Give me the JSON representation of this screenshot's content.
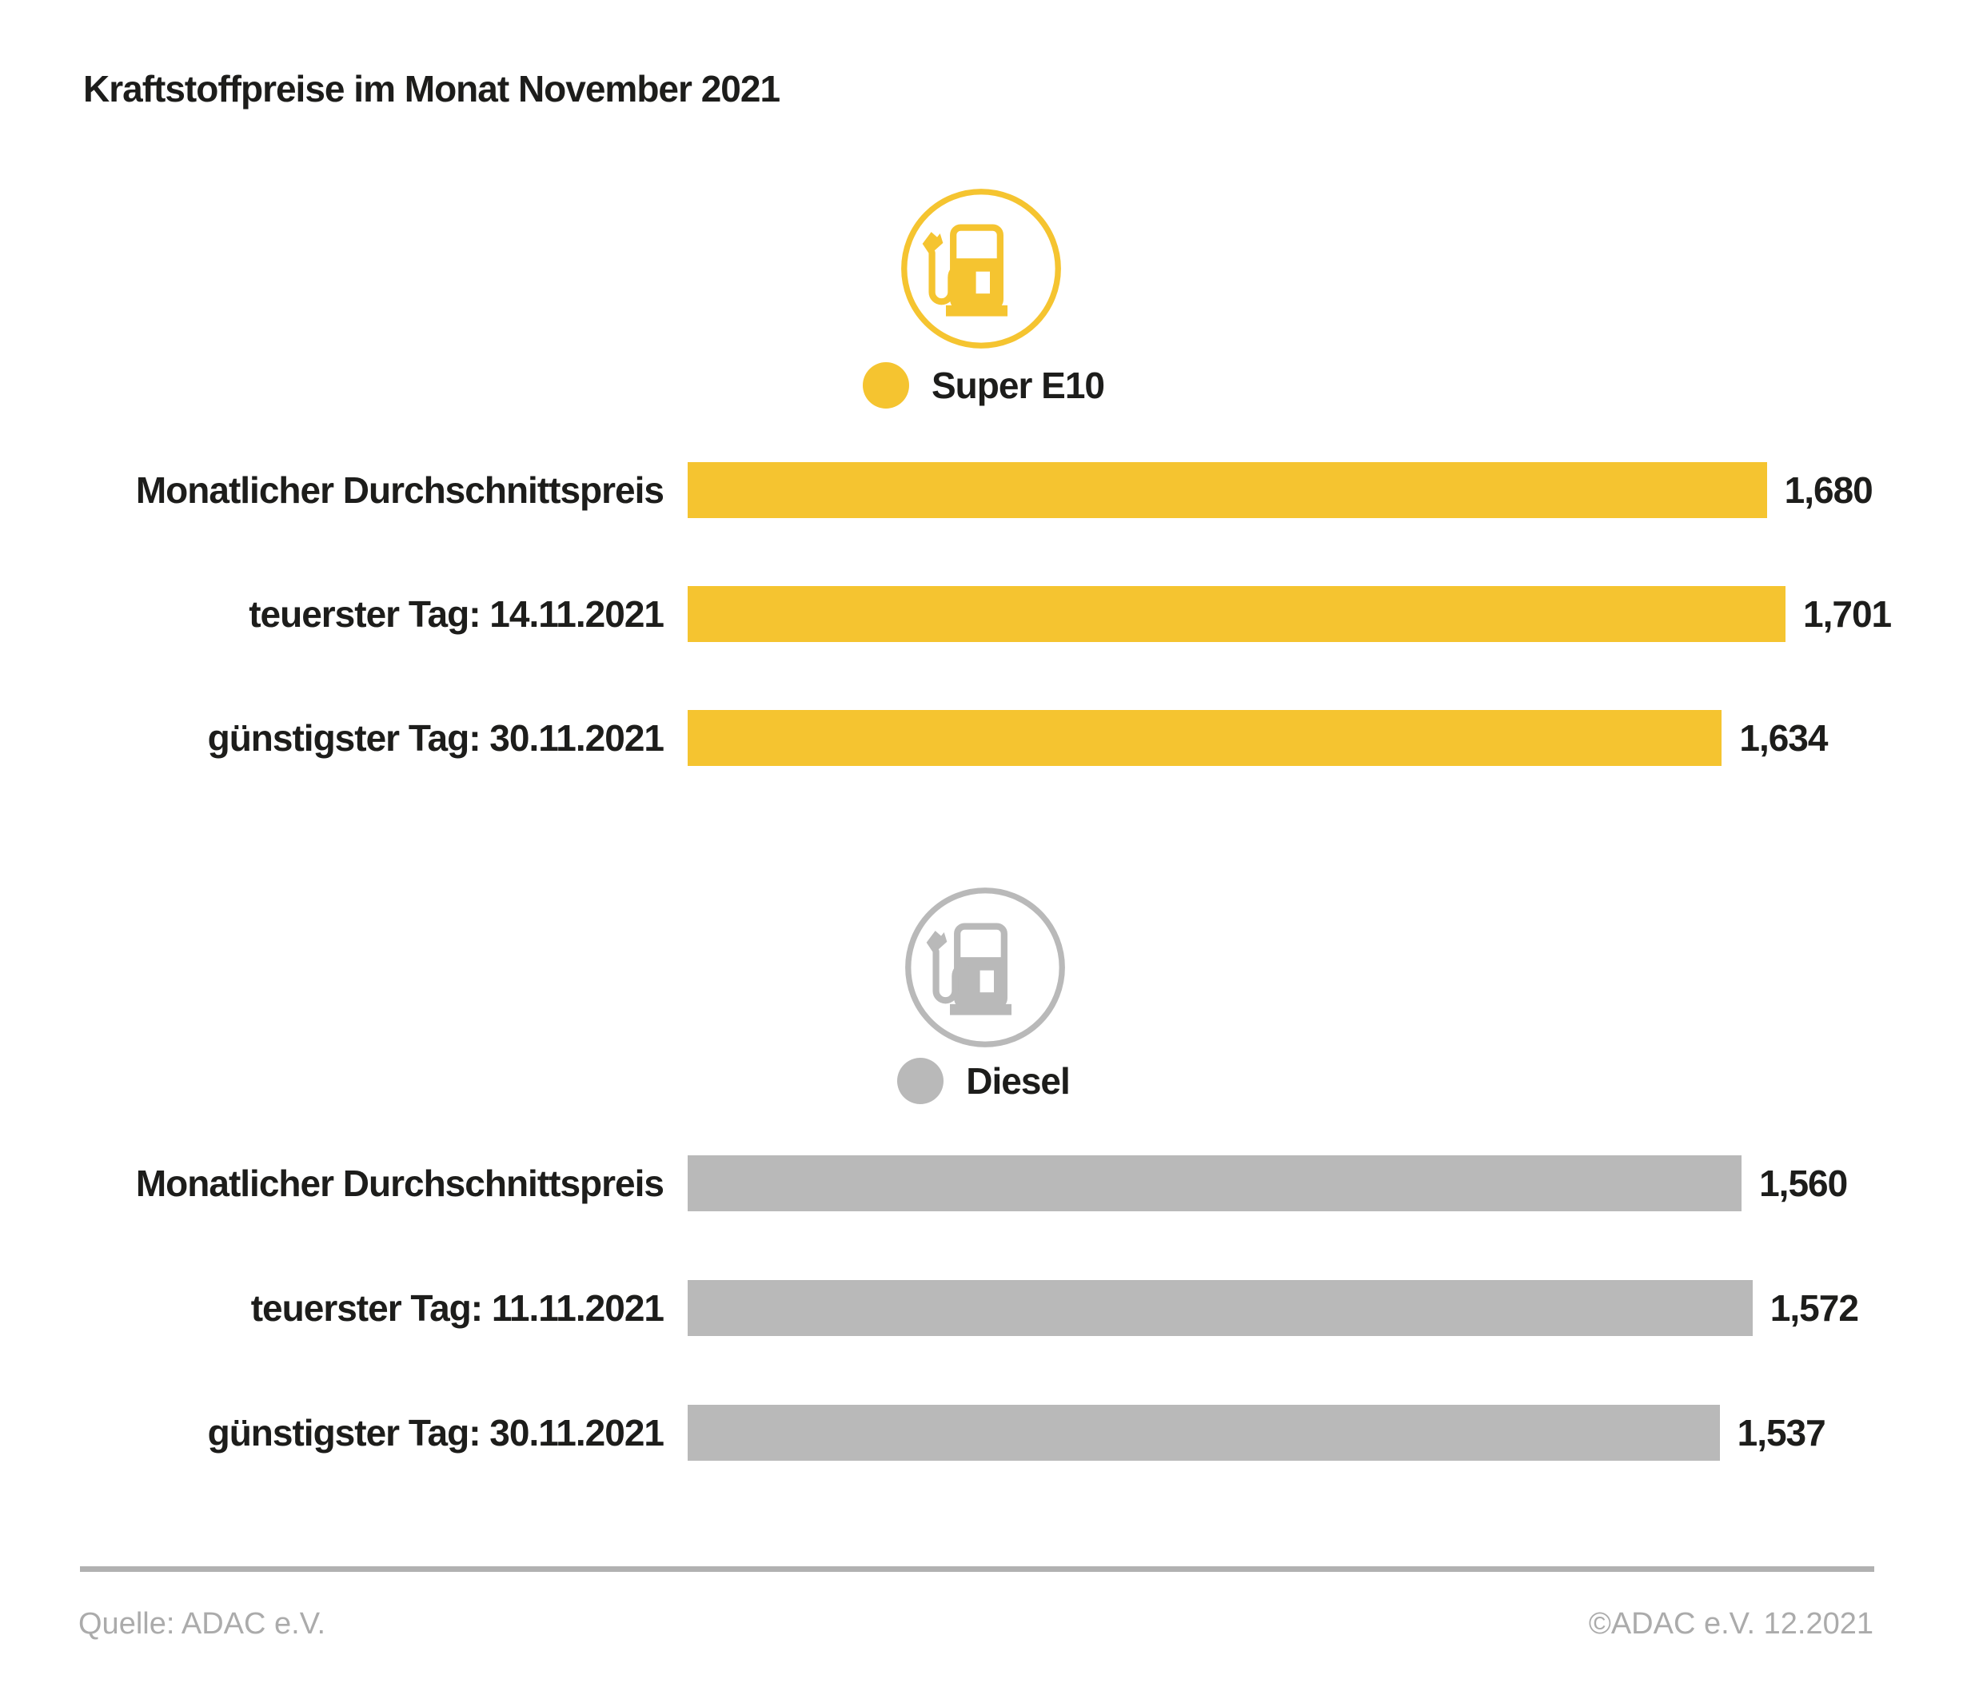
{
  "title": "Kraftstoffpreise im Monat November 2021",
  "colors": {
    "yellow": "#F5C430",
    "gray": "#B9B9B9",
    "text": "#1D1D1B",
    "footnote_gray": "#ABABAB",
    "divider_gray": "#B1B1B1"
  },
  "chart_data": [
    {
      "type": "bar",
      "series_name": "Super E10",
      "legend_icon": "fuel-pump-icon",
      "bar_color": "#F5C430",
      "categories": [
        "Monatlicher Durchschnittspreis",
        "teuerster Tag: 14.11.2021",
        "günstigster Tag: 30.11.2021"
      ],
      "values": [
        1.68,
        1.701,
        1.634
      ],
      "value_labels": [
        "1,680",
        "1,701",
        "1,634"
      ],
      "bar_width_pct": [
        98.3,
        100,
        94.2
      ],
      "orientation": "horizontal",
      "grid": false,
      "axis_labels_visible": false
    },
    {
      "type": "bar",
      "series_name": "Diesel",
      "legend_icon": "fuel-pump-icon",
      "bar_color": "#B9B9B9",
      "categories": [
        "Monatlicher Durchschnittspreis",
        "teuerster Tag: 11.11.2021",
        "günstigster Tag: 30.11.2021"
      ],
      "values": [
        1.56,
        1.572,
        1.537
      ],
      "value_labels": [
        "1,560",
        "1,572",
        "1,537"
      ],
      "bar_width_pct": [
        96.0,
        97.0,
        94.0
      ],
      "orientation": "horizontal",
      "grid": false,
      "axis_labels_visible": false
    }
  ],
  "footer": {
    "source": "Quelle: ADAC e.V.",
    "copyright": "©ADAC e.V. 12.2021"
  }
}
